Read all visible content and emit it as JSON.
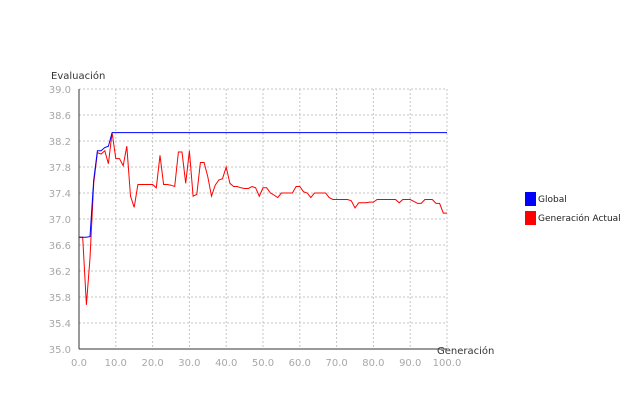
{
  "chart_data": {
    "type": "line",
    "xlabel": "Generación",
    "ylabel": "Evaluación",
    "xlim": [
      0,
      100
    ],
    "ylim": [
      35.0,
      39.0
    ],
    "x_ticks": [
      0,
      10,
      20,
      30,
      40,
      50,
      60,
      70,
      80,
      90,
      100
    ],
    "y_ticks": [
      35.0,
      35.4,
      35.8,
      36.2,
      36.6,
      37.0,
      37.4,
      37.8,
      38.2,
      38.6,
      39.0
    ],
    "x_tick_labels": [
      "0.0",
      "10.0",
      "20.0",
      "30.0",
      "40.0",
      "50.0",
      "60.0",
      "70.0",
      "80.0",
      "90.0",
      "100.0"
    ],
    "y_tick_labels": [
      "35.0",
      "35.4",
      "35.8",
      "36.2",
      "36.6",
      "37.0",
      "37.4",
      "37.8",
      "38.2",
      "38.6",
      "39.0"
    ],
    "grid": true,
    "legend_position": "right",
    "series": [
      {
        "name": "Global",
        "color": "#0000ff",
        "x": [
          0,
          1,
          2,
          3,
          4,
          5,
          6,
          7,
          8,
          9,
          10,
          100
        ],
        "values": [
          36.72,
          36.72,
          36.72,
          36.73,
          37.6,
          38.05,
          38.05,
          38.1,
          38.12,
          38.33,
          38.33,
          38.33
        ]
      },
      {
        "name": "Generación Actual",
        "color": "#ff0000",
        "x": [
          0,
          1,
          2,
          3,
          4,
          5,
          6,
          7,
          8,
          9,
          10,
          11,
          12,
          13,
          14,
          15,
          16,
          17,
          18,
          19,
          20,
          21,
          22,
          23,
          24,
          25,
          26,
          27,
          28,
          29,
          30,
          31,
          32,
          33,
          34,
          35,
          36,
          37,
          38,
          39,
          40,
          41,
          42,
          43,
          44,
          45,
          46,
          47,
          48,
          49,
          50,
          51,
          52,
          53,
          54,
          55,
          56,
          57,
          58,
          59,
          60,
          61,
          62,
          63,
          64,
          65,
          66,
          67,
          68,
          69,
          70,
          71,
          72,
          73,
          74,
          75,
          76,
          77,
          78,
          79,
          80,
          81,
          82,
          83,
          84,
          85,
          86,
          87,
          88,
          89,
          90,
          91,
          92,
          93,
          94,
          95,
          96,
          97,
          98,
          99,
          100
        ],
        "values": [
          36.72,
          36.72,
          35.68,
          36.4,
          37.55,
          38.02,
          38.0,
          38.05,
          37.85,
          38.33,
          37.93,
          37.93,
          37.82,
          38.12,
          37.35,
          37.18,
          37.53,
          37.53,
          37.53,
          37.53,
          37.53,
          37.48,
          37.98,
          37.53,
          37.53,
          37.52,
          37.5,
          38.03,
          38.03,
          37.55,
          38.05,
          37.35,
          37.38,
          37.87,
          37.87,
          37.65,
          37.35,
          37.52,
          37.6,
          37.62,
          37.8,
          37.55,
          37.5,
          37.5,
          37.48,
          37.47,
          37.47,
          37.5,
          37.48,
          37.35,
          37.48,
          37.48,
          37.4,
          37.37,
          37.33,
          37.4,
          37.4,
          37.4,
          37.4,
          37.5,
          37.5,
          37.42,
          37.4,
          37.33,
          37.4,
          37.4,
          37.4,
          37.4,
          37.33,
          37.3,
          37.3,
          37.3,
          37.3,
          37.3,
          37.28,
          37.17,
          37.25,
          37.25,
          37.25,
          37.26,
          37.26,
          37.3,
          37.3,
          37.3,
          37.3,
          37.3,
          37.3,
          37.25,
          37.3,
          37.3,
          37.3,
          37.27,
          37.24,
          37.24,
          37.3,
          37.3,
          37.3,
          37.24,
          37.24,
          37.09,
          37.09
        ]
      }
    ]
  }
}
